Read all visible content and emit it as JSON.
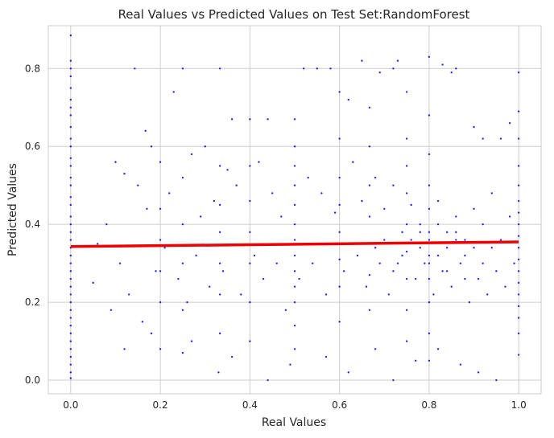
{
  "chart_data": {
    "type": "scatter",
    "title": "Real Values vs Predicted Values on Test Set:RandomForest",
    "xlabel": "Real Values",
    "ylabel": "Predicted Values",
    "xlim": [
      -0.05,
      1.05
    ],
    "ylim": [
      -0.035,
      0.91
    ],
    "xticks": [
      0.0,
      0.2,
      0.4,
      0.6,
      0.8,
      1.0
    ],
    "yticks": [
      0.0,
      0.2,
      0.4,
      0.6,
      0.8
    ],
    "xtick_labels": [
      "0.0",
      "0.2",
      "0.4",
      "0.6",
      "0.8",
      "1.0"
    ],
    "ytick_labels": [
      "0.0",
      "0.2",
      "0.4",
      "0.6",
      "0.8"
    ],
    "grid": true,
    "series": [
      {
        "kind": "scatter",
        "color": "#0000ee",
        "points": [
          [
            0.0,
            0.885
          ],
          [
            0.0,
            0.82
          ],
          [
            0.0,
            0.8
          ],
          [
            0.0,
            0.78
          ],
          [
            0.0,
            0.75
          ],
          [
            0.0,
            0.72
          ],
          [
            0.0,
            0.7
          ],
          [
            0.0,
            0.68
          ],
          [
            0.0,
            0.65
          ],
          [
            0.0,
            0.62
          ],
          [
            0.0,
            0.6
          ],
          [
            0.0,
            0.57
          ],
          [
            0.0,
            0.55
          ],
          [
            0.0,
            0.52
          ],
          [
            0.0,
            0.5
          ],
          [
            0.0,
            0.47
          ],
          [
            0.0,
            0.45
          ],
          [
            0.0,
            0.42
          ],
          [
            0.0,
            0.4
          ],
          [
            0.0,
            0.38
          ],
          [
            0.0,
            0.36
          ],
          [
            0.0,
            0.34
          ],
          [
            0.0,
            0.32
          ],
          [
            0.0,
            0.3
          ],
          [
            0.0,
            0.28
          ],
          [
            0.0,
            0.26
          ],
          [
            0.0,
            0.24
          ],
          [
            0.0,
            0.22
          ],
          [
            0.0,
            0.2
          ],
          [
            0.0,
            0.18
          ],
          [
            0.0,
            0.16
          ],
          [
            0.0,
            0.14
          ],
          [
            0.0,
            0.12
          ],
          [
            0.0,
            0.1
          ],
          [
            0.0,
            0.08
          ],
          [
            0.0,
            0.06
          ],
          [
            0.0,
            0.04
          ],
          [
            0.0,
            0.02
          ],
          [
            0.0,
            0.005
          ],
          [
            1.0,
            0.79
          ],
          [
            1.0,
            0.69
          ],
          [
            1.0,
            0.62
          ],
          [
            1.0,
            0.55
          ],
          [
            1.0,
            0.5
          ],
          [
            1.0,
            0.46
          ],
          [
            1.0,
            0.43
          ],
          [
            1.0,
            0.4
          ],
          [
            1.0,
            0.37
          ],
          [
            1.0,
            0.34
          ],
          [
            1.0,
            0.31
          ],
          [
            1.0,
            0.28
          ],
          [
            1.0,
            0.25
          ],
          [
            1.0,
            0.22
          ],
          [
            1.0,
            0.19
          ],
          [
            1.0,
            0.16
          ],
          [
            1.0,
            0.12
          ],
          [
            1.0,
            0.065
          ],
          [
            0.5,
            0.67
          ],
          [
            0.5,
            0.6
          ],
          [
            0.5,
            0.55
          ],
          [
            0.5,
            0.5
          ],
          [
            0.5,
            0.45
          ],
          [
            0.5,
            0.4
          ],
          [
            0.5,
            0.36
          ],
          [
            0.5,
            0.32
          ],
          [
            0.5,
            0.28
          ],
          [
            0.5,
            0.24
          ],
          [
            0.5,
            0.2
          ],
          [
            0.5,
            0.14
          ],
          [
            0.5,
            0.08
          ],
          [
            0.333,
            0.8
          ],
          [
            0.333,
            0.55
          ],
          [
            0.333,
            0.45
          ],
          [
            0.333,
            0.38
          ],
          [
            0.333,
            0.3
          ],
          [
            0.333,
            0.22
          ],
          [
            0.333,
            0.12
          ],
          [
            0.25,
            0.8
          ],
          [
            0.25,
            0.52
          ],
          [
            0.25,
            0.4
          ],
          [
            0.25,
            0.3
          ],
          [
            0.25,
            0.18
          ],
          [
            0.25,
            0.07
          ],
          [
            0.75,
            0.74
          ],
          [
            0.75,
            0.62
          ],
          [
            0.75,
            0.55
          ],
          [
            0.75,
            0.48
          ],
          [
            0.75,
            0.4
          ],
          [
            0.75,
            0.33
          ],
          [
            0.75,
            0.26
          ],
          [
            0.75,
            0.18
          ],
          [
            0.75,
            0.1
          ],
          [
            0.667,
            0.7
          ],
          [
            0.667,
            0.6
          ],
          [
            0.667,
            0.5
          ],
          [
            0.667,
            0.42
          ],
          [
            0.667,
            0.35
          ],
          [
            0.667,
            0.27
          ],
          [
            0.667,
            0.18
          ],
          [
            0.8,
            0.83
          ],
          [
            0.8,
            0.68
          ],
          [
            0.8,
            0.58
          ],
          [
            0.8,
            0.5
          ],
          [
            0.8,
            0.44
          ],
          [
            0.8,
            0.38
          ],
          [
            0.8,
            0.32
          ],
          [
            0.8,
            0.26
          ],
          [
            0.8,
            0.2
          ],
          [
            0.8,
            0.12
          ],
          [
            0.8,
            0.05
          ],
          [
            0.6,
            0.74
          ],
          [
            0.6,
            0.62
          ],
          [
            0.6,
            0.52
          ],
          [
            0.6,
            0.45
          ],
          [
            0.6,
            0.38
          ],
          [
            0.6,
            0.31
          ],
          [
            0.6,
            0.24
          ],
          [
            0.6,
            0.15
          ],
          [
            0.4,
            0.67
          ],
          [
            0.4,
            0.55
          ],
          [
            0.4,
            0.46
          ],
          [
            0.4,
            0.38
          ],
          [
            0.4,
            0.3
          ],
          [
            0.4,
            0.2
          ],
          [
            0.4,
            0.1
          ],
          [
            0.2,
            0.56
          ],
          [
            0.2,
            0.44
          ],
          [
            0.2,
            0.36
          ],
          [
            0.2,
            0.28
          ],
          [
            0.2,
            0.2
          ],
          [
            0.2,
            0.08
          ],
          [
            0.143,
            0.8
          ],
          [
            0.167,
            0.64
          ],
          [
            0.23,
            0.74
          ],
          [
            0.36,
            0.67
          ],
          [
            0.44,
            0.67
          ],
          [
            0.52,
            0.8
          ],
          [
            0.55,
            0.8
          ],
          [
            0.58,
            0.8
          ],
          [
            0.62,
            0.72
          ],
          [
            0.65,
            0.82
          ],
          [
            0.69,
            0.79
          ],
          [
            0.72,
            0.8
          ],
          [
            0.73,
            0.82
          ],
          [
            0.83,
            0.81
          ],
          [
            0.85,
            0.79
          ],
          [
            0.86,
            0.8
          ],
          [
            0.9,
            0.65
          ],
          [
            0.92,
            0.62
          ],
          [
            0.96,
            0.62
          ],
          [
            0.98,
            0.66
          ],
          [
            0.06,
            0.35
          ],
          [
            0.08,
            0.4
          ],
          [
            0.1,
            0.56
          ],
          [
            0.12,
            0.53
          ],
          [
            0.15,
            0.5
          ],
          [
            0.17,
            0.44
          ],
          [
            0.18,
            0.6
          ],
          [
            0.22,
            0.48
          ],
          [
            0.27,
            0.58
          ],
          [
            0.29,
            0.42
          ],
          [
            0.3,
            0.6
          ],
          [
            0.32,
            0.46
          ],
          [
            0.35,
            0.54
          ],
          [
            0.37,
            0.5
          ],
          [
            0.42,
            0.56
          ],
          [
            0.45,
            0.48
          ],
          [
            0.47,
            0.42
          ],
          [
            0.53,
            0.52
          ],
          [
            0.56,
            0.48
          ],
          [
            0.59,
            0.43
          ],
          [
            0.63,
            0.56
          ],
          [
            0.65,
            0.46
          ],
          [
            0.68,
            0.52
          ],
          [
            0.7,
            0.44
          ],
          [
            0.72,
            0.5
          ],
          [
            0.74,
            0.38
          ],
          [
            0.76,
            0.45
          ],
          [
            0.78,
            0.4
          ],
          [
            0.82,
            0.46
          ],
          [
            0.84,
            0.38
          ],
          [
            0.86,
            0.42
          ],
          [
            0.88,
            0.36
          ],
          [
            0.9,
            0.44
          ],
          [
            0.92,
            0.4
          ],
          [
            0.94,
            0.48
          ],
          [
            0.96,
            0.36
          ],
          [
            0.98,
            0.42
          ],
          [
            0.05,
            0.25
          ],
          [
            0.09,
            0.18
          ],
          [
            0.11,
            0.3
          ],
          [
            0.13,
            0.22
          ],
          [
            0.16,
            0.15
          ],
          [
            0.19,
            0.28
          ],
          [
            0.21,
            0.34
          ],
          [
            0.24,
            0.26
          ],
          [
            0.26,
            0.2
          ],
          [
            0.28,
            0.32
          ],
          [
            0.31,
            0.24
          ],
          [
            0.34,
            0.28
          ],
          [
            0.38,
            0.22
          ],
          [
            0.41,
            0.32
          ],
          [
            0.43,
            0.26
          ],
          [
            0.46,
            0.3
          ],
          [
            0.48,
            0.18
          ],
          [
            0.51,
            0.26
          ],
          [
            0.54,
            0.3
          ],
          [
            0.57,
            0.22
          ],
          [
            0.61,
            0.28
          ],
          [
            0.64,
            0.32
          ],
          [
            0.66,
            0.24
          ],
          [
            0.69,
            0.3
          ],
          [
            0.71,
            0.22
          ],
          [
            0.73,
            0.3
          ],
          [
            0.77,
            0.26
          ],
          [
            0.79,
            0.3
          ],
          [
            0.81,
            0.22
          ],
          [
            0.83,
            0.28
          ],
          [
            0.85,
            0.24
          ],
          [
            0.87,
            0.3
          ],
          [
            0.89,
            0.2
          ],
          [
            0.91,
            0.26
          ],
          [
            0.93,
            0.22
          ],
          [
            0.95,
            0.28
          ],
          [
            0.97,
            0.24
          ],
          [
            0.99,
            0.3
          ],
          [
            0.12,
            0.08
          ],
          [
            0.18,
            0.12
          ],
          [
            0.27,
            0.1
          ],
          [
            0.33,
            0.02
          ],
          [
            0.36,
            0.06
          ],
          [
            0.44,
            0.0
          ],
          [
            0.49,
            0.04
          ],
          [
            0.57,
            0.06
          ],
          [
            0.62,
            0.02
          ],
          [
            0.68,
            0.08
          ],
          [
            0.72,
            0.0
          ],
          [
            0.77,
            0.05
          ],
          [
            0.82,
            0.08
          ],
          [
            0.87,
            0.04
          ],
          [
            0.91,
            0.02
          ],
          [
            0.95,
            0.0
          ],
          [
            0.76,
            0.36
          ],
          [
            0.78,
            0.34
          ],
          [
            0.8,
            0.36
          ],
          [
            0.82,
            0.32
          ],
          [
            0.84,
            0.34
          ],
          [
            0.86,
            0.36
          ],
          [
            0.88,
            0.32
          ],
          [
            0.9,
            0.34
          ],
          [
            0.78,
            0.38
          ],
          [
            0.82,
            0.4
          ],
          [
            0.86,
            0.38
          ],
          [
            0.8,
            0.3
          ],
          [
            0.84,
            0.28
          ],
          [
            0.88,
            0.26
          ],
          [
            0.92,
            0.3
          ],
          [
            0.94,
            0.34
          ],
          [
            0.74,
            0.32
          ],
          [
            0.7,
            0.36
          ],
          [
            0.72,
            0.28
          ],
          [
            0.68,
            0.34
          ]
        ]
      },
      {
        "kind": "regression_line",
        "color": "#ee0000",
        "x": [
          0.0,
          1.0
        ],
        "y": [
          0.343,
          0.355
        ]
      }
    ]
  }
}
